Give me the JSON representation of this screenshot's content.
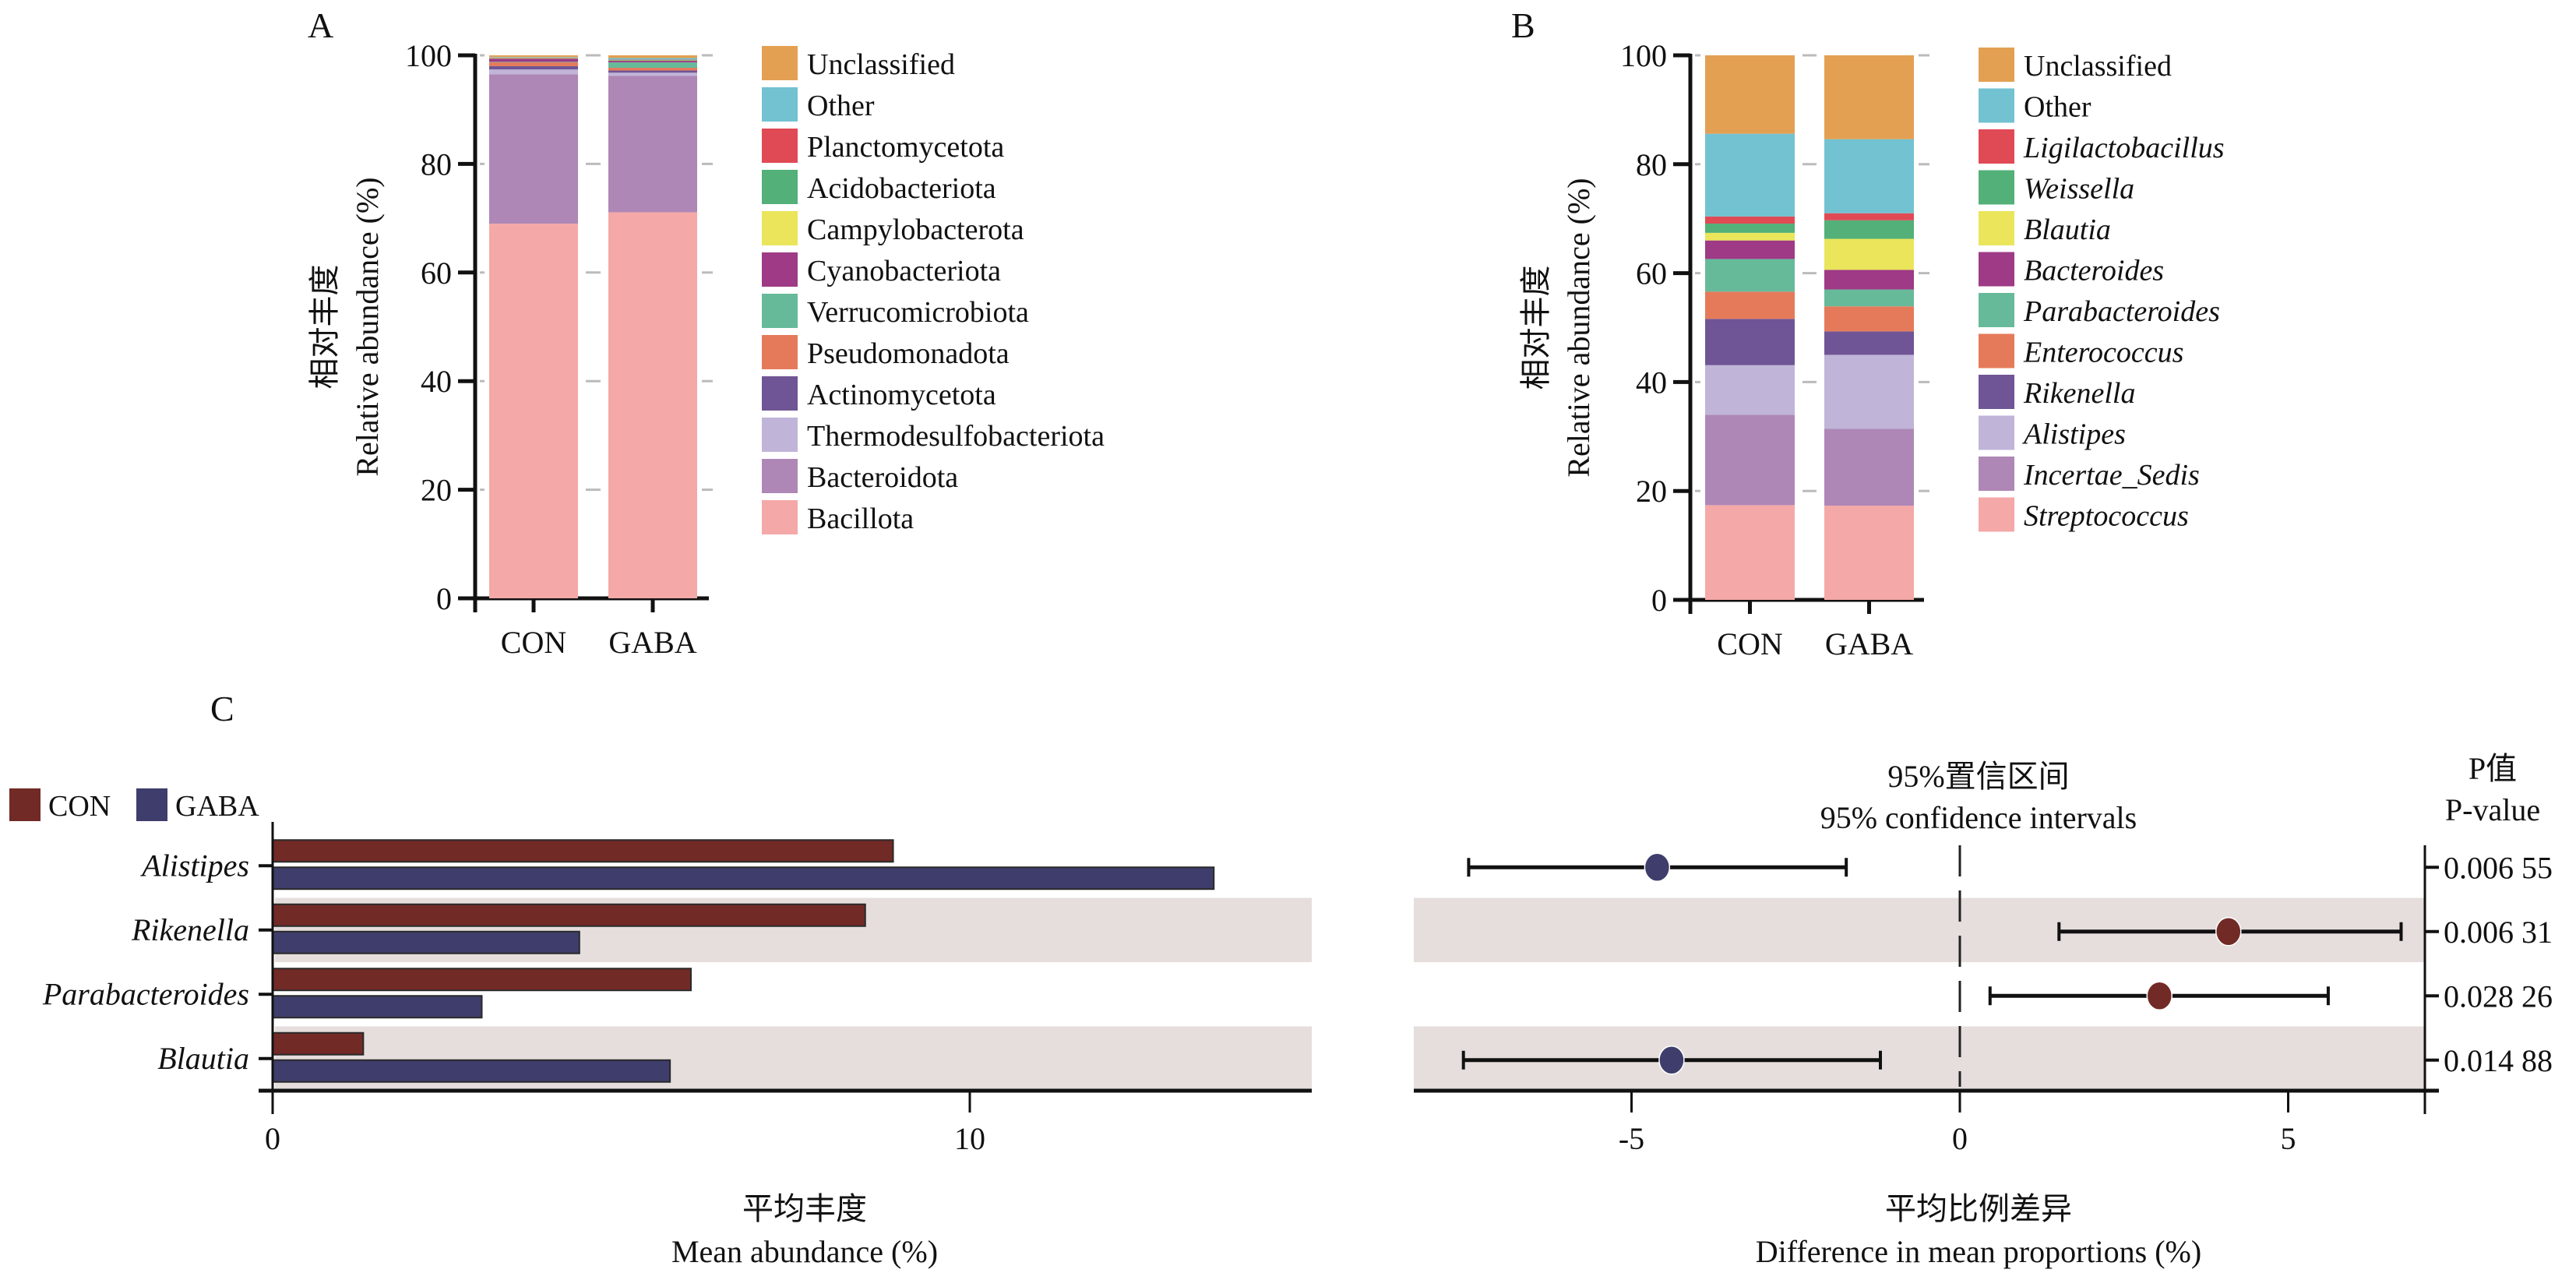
{
  "panels": {
    "A": {
      "label": "A"
    },
    "B": {
      "label": "B"
    },
    "C": {
      "label": "C"
    }
  },
  "chart_data": [
    {
      "id": "A",
      "type": "bar",
      "stacked": true,
      "title": "",
      "xlabel": "",
      "ylabel_cn": "相对丰度",
      "ylabel": "Relative abundance (%)",
      "ylim": [
        0,
        100
      ],
      "yticks": [
        0,
        20,
        40,
        60,
        80,
        100
      ],
      "grid": "dashed ticks between bars",
      "legend_position": "right",
      "legend_italic": false,
      "categories": [
        "CON",
        "GABA"
      ],
      "series": [
        {
          "name": "Bacillota",
          "color": "#F4A8A8",
          "values": [
            69.0,
            71.1
          ]
        },
        {
          "name": "Bacteroidota",
          "color": "#AE87B6",
          "values": [
            27.5,
            25.1
          ]
        },
        {
          "name": "Thermodesulfobacteriota",
          "color": "#C0B4D8",
          "values": [
            0.9,
            0.6
          ]
        },
        {
          "name": "Actinomycetota",
          "color": "#6F5595",
          "values": [
            0.6,
            0.4
          ]
        },
        {
          "name": "Pseudomonadota",
          "color": "#E57A5A",
          "values": [
            0.7,
            0.5
          ]
        },
        {
          "name": "Verrucomicrobiota",
          "color": "#66BA9A",
          "values": [
            0.1,
            1.0
          ]
        },
        {
          "name": "Cyanobacteriota",
          "color": "#9E3A86",
          "values": [
            0.6,
            0.3
          ]
        },
        {
          "name": "Campylobacterota",
          "color": "#EAE55A",
          "values": [
            0.1,
            0.05
          ]
        },
        {
          "name": "Acidobacteriota",
          "color": "#52B078",
          "values": [
            0.05,
            0.1
          ]
        },
        {
          "name": "Planctomycetota",
          "color": "#E04A55",
          "values": [
            0.05,
            0.05
          ]
        },
        {
          "name": "Other",
          "color": "#72C2D2",
          "values": [
            0.1,
            0.3
          ]
        },
        {
          "name": "Unclassified",
          "color": "#E3A052",
          "values": [
            0.3,
            0.5
          ]
        }
      ]
    },
    {
      "id": "B",
      "type": "bar",
      "stacked": true,
      "title": "",
      "xlabel": "",
      "ylabel_cn": "相对丰度",
      "ylabel": "Relative abundance (%)",
      "ylim": [
        0,
        100
      ],
      "yticks": [
        0,
        20,
        40,
        60,
        80,
        100
      ],
      "grid": "dashed ticks between bars",
      "legend_position": "right",
      "legend_italic": true,
      "categories": [
        "CON",
        "GABA"
      ],
      "series": [
        {
          "name": "Streptococcus",
          "color": "#F4A8A8",
          "values": [
            17.4,
            17.3
          ]
        },
        {
          "name": "Incertae_Sedis",
          "color": "#AE87B6",
          "values": [
            16.6,
            14.1
          ]
        },
        {
          "name": "Alistipes",
          "color": "#C0B4D8",
          "values": [
            9.1,
            13.6
          ]
        },
        {
          "name": "Rikenella",
          "color": "#6F5595",
          "values": [
            8.5,
            4.3
          ]
        },
        {
          "name": "Enterococcus",
          "color": "#E57A5A",
          "values": [
            5.0,
            4.6
          ]
        },
        {
          "name": "Parabacteroides",
          "color": "#66BA9A",
          "values": [
            6.0,
            3.1
          ]
        },
        {
          "name": "Bacteroides",
          "color": "#9E3A86",
          "values": [
            3.4,
            3.6
          ]
        },
        {
          "name": "Blautia",
          "color": "#EAE55A",
          "values": [
            1.4,
            5.7
          ]
        },
        {
          "name": "Weissella",
          "color": "#52B078",
          "values": [
            1.7,
            3.4
          ]
        },
        {
          "name": "Ligilactobacillus",
          "color": "#E04A55",
          "values": [
            1.3,
            1.3
          ]
        },
        {
          "name": "Other",
          "color": "#72C2D2",
          "values": [
            15.2,
            13.6
          ]
        },
        {
          "name": "Unclassified",
          "color": "#E3A052",
          "values": [
            14.4,
            15.4
          ]
        }
      ]
    },
    {
      "id": "C-left",
      "type": "bar",
      "orientation": "horizontal",
      "title": "",
      "xlabel_cn": "平均丰度",
      "xlabel": "Mean abundance (%)",
      "xlim": [
        0,
        14.8
      ],
      "xticks": [
        0,
        10
      ],
      "legend_position": "top-left",
      "categories": [
        "Alistipes",
        "Rikenella",
        "Parabacteroides",
        "Blautia"
      ],
      "series": [
        {
          "name": "CON",
          "color": "#722A26",
          "values": [
            8.9,
            8.5,
            6.0,
            1.3
          ]
        },
        {
          "name": "GABA",
          "color": "#3E3D6B",
          "values": [
            13.5,
            4.4,
            3.0,
            5.7
          ]
        }
      ],
      "shaded_rows": [
        "Rikenella",
        "Blautia"
      ]
    },
    {
      "id": "C-right",
      "type": "scatter",
      "subtype": "confidence-interval",
      "title_cn": "95%置信区间",
      "title": "95% confidence intervals",
      "xlabel_cn": "平均比例差异",
      "xlabel": "Difference in mean proportions (%)",
      "xlim": [
        -8.3,
        7.1
      ],
      "xticks": [
        -5,
        0,
        5
      ],
      "reference_line": 0,
      "categories": [
        "Alistipes",
        "Rikenella",
        "Parabacteroides",
        "Blautia"
      ],
      "points": [
        {
          "category": "Alistipes",
          "diff": -4.61,
          "ci_low": -7.48,
          "ci_high": -1.73,
          "group": "GABA",
          "color": "#3E3D6B",
          "p_value": "0.006 55"
        },
        {
          "category": "Rikenella",
          "diff": 4.09,
          "ci_low": 1.51,
          "ci_high": 6.72,
          "group": "CON",
          "color": "#722A26",
          "p_value": "0.006 31"
        },
        {
          "category": "Parabacteroides",
          "diff": 3.04,
          "ci_low": 0.46,
          "ci_high": 5.61,
          "group": "CON",
          "color": "#722A26",
          "p_value": "0.028 26"
        },
        {
          "category": "Blautia",
          "diff": -4.39,
          "ci_low": -7.56,
          "ci_high": -1.21,
          "group": "GABA",
          "color": "#3E3D6B",
          "p_value": "0.014 88"
        }
      ],
      "p_header_cn": "P值",
      "p_header": "P-value"
    }
  ],
  "colors": {
    "shade": "#E5DEDC",
    "axis": "#111111",
    "gridline": "#BBBBBB"
  }
}
